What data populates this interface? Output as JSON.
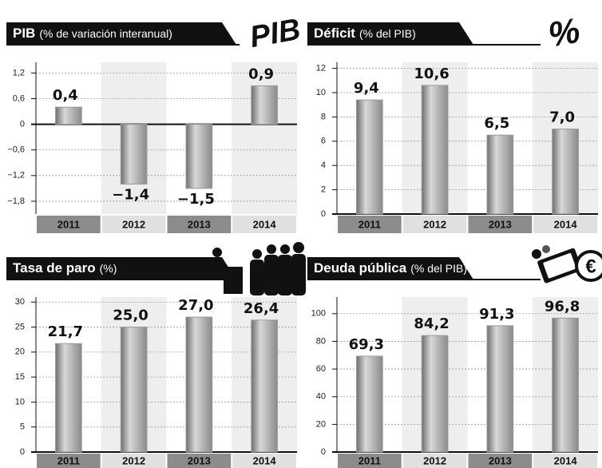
{
  "chart_data": [
    {
      "type": "bar",
      "title": "PIB",
      "unit": "(% de variación interanual)",
      "badge": "PIB",
      "categories": [
        "2011",
        "2012",
        "2013",
        "2014"
      ],
      "values": [
        0.4,
        -1.4,
        -1.5,
        0.9
      ],
      "value_labels": [
        "0,4",
        "−1,4",
        "−1,5",
        "0,9"
      ],
      "color": "#9a9a9a",
      "ylim": [
        -2.1,
        1.45
      ],
      "yticks": [
        {
          "value": -1.8,
          "label": "−1,8"
        },
        {
          "value": -1.2,
          "label": "−1,2"
        },
        {
          "value": -0.6,
          "label": "−0,6"
        },
        0,
        {
          "value": 0.6,
          "label": "0,6"
        },
        {
          "value": 1.2,
          "label": "1,2"
        }
      ],
      "grid": true
    },
    {
      "type": "bar",
      "title": "Déficit",
      "unit": "(% del PIB)",
      "badge": "%",
      "categories": [
        "2011",
        "2012",
        "2013",
        "2014"
      ],
      "values": [
        9.4,
        10.6,
        6.5,
        7.0
      ],
      "value_labels": [
        "9,4",
        "10,6",
        "6,5",
        "7,0"
      ],
      "color": "#9a9a9a",
      "ylim": [
        0,
        12.5
      ],
      "yticks": [
        0,
        2,
        4,
        6,
        8,
        10,
        12
      ],
      "grid": true
    },
    {
      "type": "bar",
      "title": "Tasa de paro",
      "unit": "(%)",
      "categories": [
        "2011",
        "2012",
        "2013",
        "2014"
      ],
      "values": [
        21.7,
        25.0,
        27.0,
        26.4
      ],
      "value_labels": [
        "21,7",
        "25,0",
        "27,0",
        "26,4"
      ],
      "color": "#9a9a9a",
      "ylim": [
        0,
        31
      ],
      "yticks": [
        0,
        5,
        10,
        15,
        20,
        25,
        30
      ],
      "grid": true
    },
    {
      "type": "bar",
      "title": "Deuda pública",
      "unit": "(% del PIB)",
      "categories": [
        "2011",
        "2012",
        "2013",
        "2014"
      ],
      "values": [
        69.3,
        84.2,
        91.3,
        96.8
      ],
      "value_labels": [
        "69,3",
        "84,2",
        "91,3",
        "96,8"
      ],
      "color": "#9a9a9a",
      "ylim": [
        0,
        112
      ],
      "yticks": [
        0,
        20,
        40,
        60,
        80,
        100
      ],
      "grid": true
    }
  ]
}
